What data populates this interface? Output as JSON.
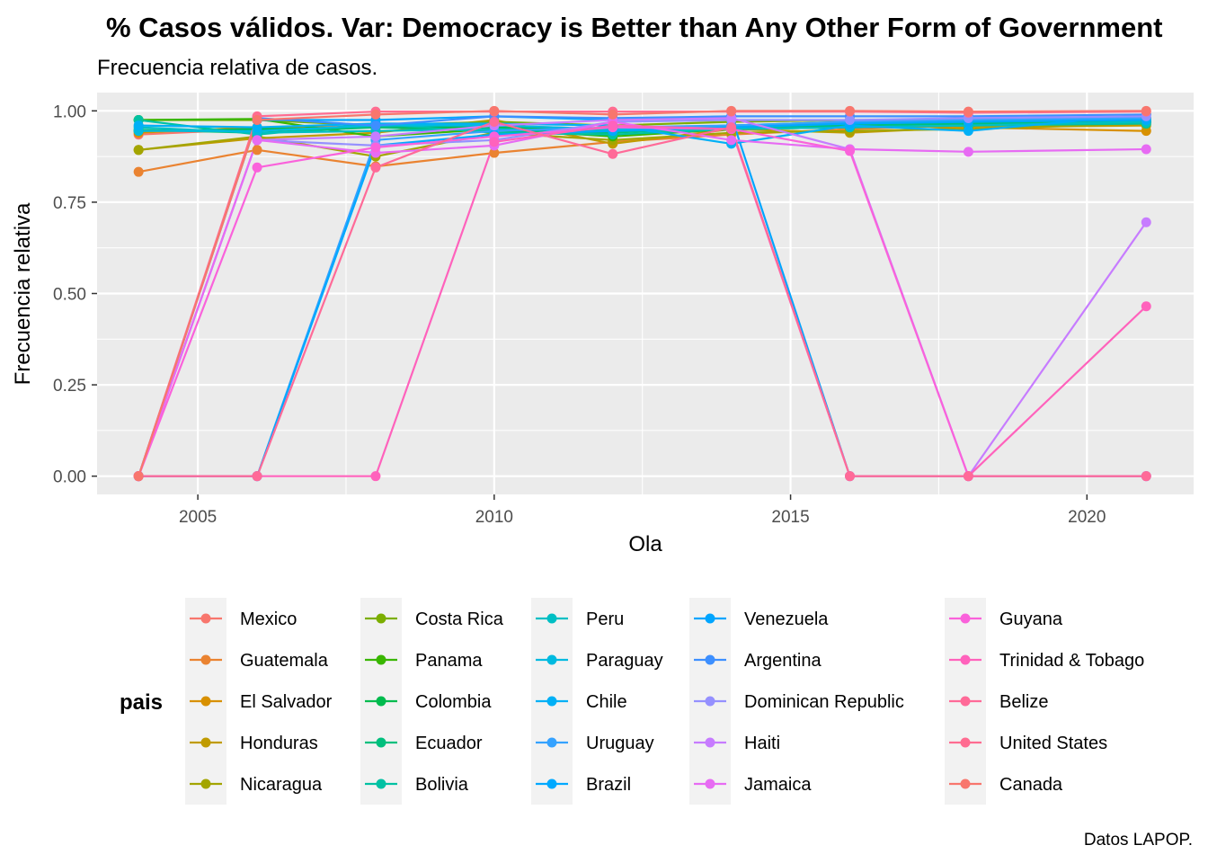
{
  "chart_data": {
    "type": "line",
    "title": "% Casos válidos. Var: Democracy is Better than Any Other Form of Government",
    "subtitle": "Frecuencia relativa de casos.",
    "caption": "Datos LAPOP.",
    "xlabel": "Ola",
    "ylabel": "Frecuencia relativa",
    "legend_title": "pais",
    "legend_position": "bottom",
    "grid": true,
    "xlim": [
      2003.3,
      2021.8
    ],
    "ylim": [
      -0.05,
      1.05
    ],
    "x_ticks": [
      2005,
      2010,
      2015,
      2020
    ],
    "y_ticks": [
      0,
      0.25,
      0.5,
      0.75,
      1
    ],
    "x_tick_labels": [
      "2005",
      "2010",
      "2015",
      "2020"
    ],
    "y_tick_labels": [
      "0.00",
      "0.25",
      "0.50",
      "0.75",
      "1.00"
    ],
    "x": [
      2004,
      2006,
      2008,
      2010,
      2012,
      2014,
      2016,
      2018,
      2021
    ],
    "series": [
      {
        "name": "Mexico",
        "color": "#F8766D",
        "values": [
          0.935,
          0.95,
          0.96,
          0.96,
          0.95,
          0.95,
          0.96,
          0.97,
          0.97
        ]
      },
      {
        "name": "Guatemala",
        "color": "#EA8331",
        "values": [
          0.833,
          0.893,
          0.848,
          0.885,
          0.915,
          0.935,
          0.95,
          0.96,
          0.97
        ]
      },
      {
        "name": "El Salvador",
        "color": "#D89000",
        "values": [
          0.94,
          0.955,
          0.955,
          0.955,
          0.95,
          0.955,
          0.96,
          0.955,
          0.945
        ]
      },
      {
        "name": "Honduras",
        "color": "#C09B00",
        "values": [
          0.893,
          0.925,
          0.94,
          0.975,
          0.91,
          0.95,
          0.94,
          0.955,
          0.96
        ]
      },
      {
        "name": "Nicaragua",
        "color": "#A3A500",
        "values": [
          0.893,
          0.93,
          0.875,
          0.94,
          0.92,
          0.94,
          0.945,
          0.95,
          0.965
        ]
      },
      {
        "name": "Costa Rica",
        "color": "#7CAE00",
        "values": [
          0.975,
          0.975,
          0.96,
          0.97,
          0.96,
          0.97,
          0.975,
          0.975,
          0.98
        ]
      },
      {
        "name": "Panama",
        "color": "#39B600",
        "values": [
          0.975,
          0.978,
          0.93,
          0.95,
          0.93,
          0.95,
          0.955,
          0.96,
          0.97
        ]
      },
      {
        "name": "Colombia",
        "color": "#00BB4E",
        "values": [
          0.945,
          0.95,
          0.955,
          0.955,
          0.95,
          0.96,
          0.965,
          0.97,
          0.975
        ]
      },
      {
        "name": "Ecuador",
        "color": "#00BF7D",
        "values": [
          0.948,
          0.94,
          0.955,
          0.945,
          0.94,
          0.955,
          0.96,
          0.965,
          0.97
        ]
      },
      {
        "name": "Bolivia",
        "color": "#00C1A3",
        "values": [
          0.975,
          0.935,
          0.965,
          0.94,
          0.935,
          0.95,
          0.955,
          0.96,
          0.965
        ]
      },
      {
        "name": "Peru",
        "color": "#00BFC4",
        "values": [
          0.955,
          0.94,
          0.945,
          0.95,
          0.945,
          0.95,
          0.955,
          0.96,
          0.97
        ]
      },
      {
        "name": "Paraguay",
        "color": "#00BAE0",
        "values": [
          0.945,
          0.945,
          0.96,
          0.96,
          0.95,
          0.96,
          0.97,
          0.975,
          0.98
        ]
      },
      {
        "name": "Chile",
        "color": "#00B0F6",
        "values": [
          0.96,
          0.955,
          0.965,
          0.965,
          0.96,
          0.91,
          0.96,
          0.945,
          0.99
        ]
      },
      {
        "name": "Uruguay",
        "color": "#35A2FF",
        "values": [
          0.0,
          0.0,
          0.92,
          0.945,
          0.955,
          0.96,
          0.97,
          0.975,
          0.98
        ]
      },
      {
        "name": "Brazil",
        "color": "#00A9FF",
        "values": [
          0.0,
          0.0,
          0.905,
          0.935,
          0.945,
          0.955,
          0.965,
          0.97,
          0.975
        ]
      },
      {
        "name": "Venezuela",
        "color": "#00A5FF",
        "values": [
          0.0,
          0.975,
          0.975,
          0.985,
          0.975,
          0.985,
          0.0,
          0.0,
          0.0
        ]
      },
      {
        "name": "Argentina",
        "color": "#3D8FFF",
        "values": [
          0.0,
          0.98,
          0.96,
          0.985,
          0.98,
          0.985,
          0.985,
          0.985,
          0.99
        ]
      },
      {
        "name": "Dominican Republic",
        "color": "#9590FF",
        "values": [
          0.0,
          0.92,
          0.905,
          0.92,
          0.97,
          0.975,
          0.975,
          0.98,
          0.985
        ]
      },
      {
        "name": "Haiti",
        "color": "#C77CFF",
        "values": [
          0.0,
          0.92,
          0.93,
          0.96,
          0.975,
          0.98,
          0.895,
          0.0,
          0.695
        ]
      },
      {
        "name": "Jamaica",
        "color": "#E76BF3",
        "values": [
          0.0,
          0.92,
          0.885,
          0.905,
          0.97,
          0.92,
          0.895,
          0.888,
          0.895
        ]
      },
      {
        "name": "Guyana",
        "color": "#FA62DB",
        "values": [
          0.0,
          0.845,
          0.9,
          0.93,
          0.955,
          0.95,
          0.89,
          0.0,
          0.0
        ]
      },
      {
        "name": "Trinidad & Tobago",
        "color": "#FF62BC",
        "values": [
          0.0,
          0.0,
          0.0,
          0.915,
          0.96,
          0.95,
          0.0,
          0.0,
          0.465
        ]
      },
      {
        "name": "Belize",
        "color": "#FF6A98",
        "values": [
          0.0,
          0.0,
          0.845,
          0.97,
          0.882,
          0.955,
          0.0,
          0.0,
          0.0
        ]
      },
      {
        "name": "United States",
        "color": "#FF6C91",
        "values": [
          0.0,
          0.985,
          0.998,
          0.998,
          0.998,
          0.998,
          0.998,
          0.995,
          0.998
        ]
      },
      {
        "name": "Canada",
        "color": "#F8766D",
        "values": [
          0.0,
          0.975,
          0.99,
          1.0,
          0.99,
          1.0,
          1.0,
          0.998,
          1.0
        ]
      }
    ]
  }
}
